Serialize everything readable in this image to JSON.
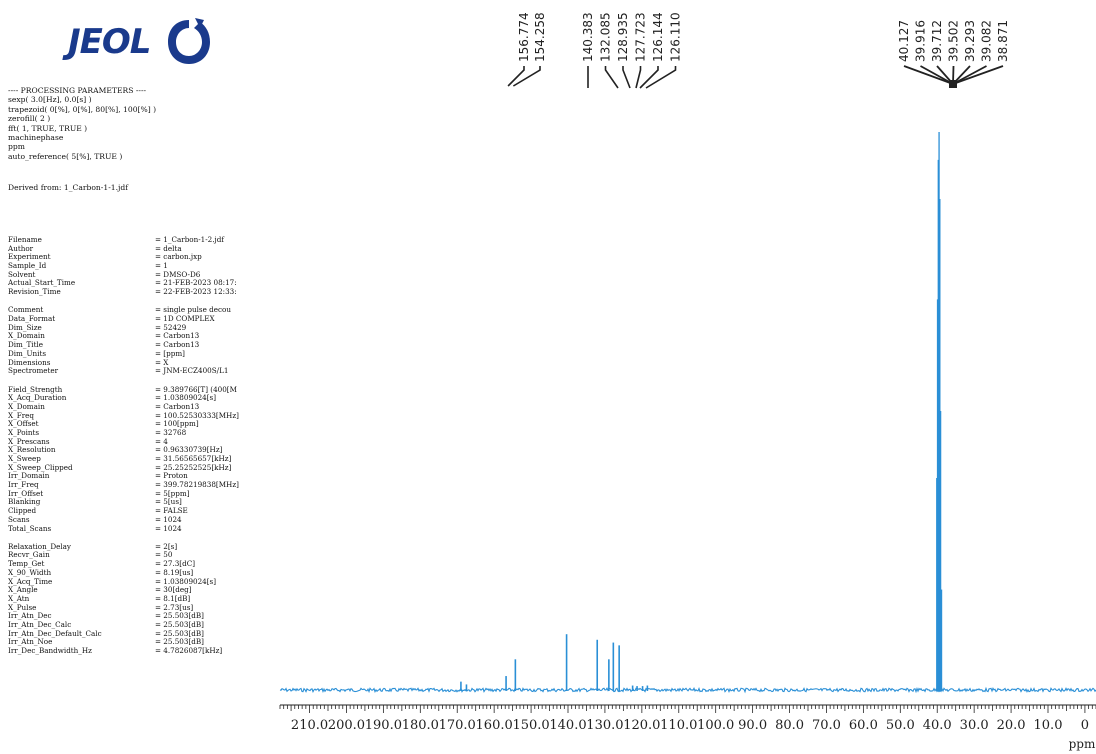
{
  "logo": {
    "text": "JEOL"
  },
  "processing": {
    "lines": [
      "---- PROCESSING PARAMETERS ----",
      "sexp( 3.0[Hz], 0.0[s] )",
      "trapezoid( 0[%], 0[%], 80[%], 100[%] )",
      "zerofill( 2 )",
      "fft( 1, TRUE, TRUE )",
      "machinephase",
      "ppm",
      "auto_reference( 5[%], TRUE )"
    ],
    "derived_from": "Derived from: 1_Carbon-1-1.jdf"
  },
  "params": [
    [
      {
        "k": "Filename",
        "v": "= 1_Carbon-1-2.jdf"
      },
      {
        "k": "Author",
        "v": "= delta"
      },
      {
        "k": "Experiment",
        "v": "= carbon.jxp"
      },
      {
        "k": "Sample_Id",
        "v": "= 1"
      },
      {
        "k": "Solvent",
        "v": "= DMSO-D6"
      },
      {
        "k": "Actual_Start_Time",
        "v": "= 21-FEB-2023 08:17:"
      },
      {
        "k": "Revision_Time",
        "v": "= 22-FEB-2023 12:33:"
      }
    ],
    [
      {
        "k": "Comment",
        "v": "= single pulse decou"
      },
      {
        "k": "Data_Format",
        "v": "= 1D COMPLEX"
      },
      {
        "k": "Dim_Size",
        "v": "= 52429"
      },
      {
        "k": "X_Domain",
        "v": "= Carbon13"
      },
      {
        "k": "Dim_Title",
        "v": "= Carbon13"
      },
      {
        "k": "Dim_Units",
        "v": "= [ppm]"
      },
      {
        "k": "Dimensions",
        "v": "= X"
      },
      {
        "k": "Spectrometer",
        "v": "= JNM-ECZ400S/L1"
      }
    ],
    [
      {
        "k": "Field_Strength",
        "v": "= 9.389766[T] (400[M"
      },
      {
        "k": "X_Acq_Duration",
        "v": "= 1.03809024[s]"
      },
      {
        "k": "X_Domain",
        "v": "= Carbon13"
      },
      {
        "k": "X_Freq",
        "v": "= 100.52530333[MHz]"
      },
      {
        "k": "X_Offset",
        "v": "= 100[ppm]"
      },
      {
        "k": "X_Points",
        "v": "= 32768"
      },
      {
        "k": "X_Prescans",
        "v": "= 4"
      },
      {
        "k": "X_Resolution",
        "v": "= 0.96330739[Hz]"
      },
      {
        "k": "X_Sweep",
        "v": "= 31.56565657[kHz]"
      },
      {
        "k": "X_Sweep_Clipped",
        "v": "= 25.25252525[kHz]"
      },
      {
        "k": "Irr_Domain",
        "v": "= Proton"
      },
      {
        "k": "Irr_Freq",
        "v": "= 399.78219838[MHz]"
      },
      {
        "k": "Irr_Offset",
        "v": "= 5[ppm]"
      },
      {
        "k": "Blanking",
        "v": "= 5[us]"
      },
      {
        "k": "Clipped",
        "v": "= FALSE"
      },
      {
        "k": "Scans",
        "v": "= 1024"
      },
      {
        "k": "Total_Scans",
        "v": "= 1024"
      }
    ],
    [
      {
        "k": "Relaxation_Delay",
        "v": "= 2[s]"
      },
      {
        "k": "Recvr_Gain",
        "v": "= 50"
      },
      {
        "k": "Temp_Get",
        "v": "= 27.3[dC]"
      },
      {
        "k": "X_90_Width",
        "v": "= 8.19[us]"
      },
      {
        "k": "X_Acq_Time",
        "v": "= 1.03809024[s]"
      },
      {
        "k": "X_Angle",
        "v": "= 30[deg]"
      },
      {
        "k": "X_Atn",
        "v": "= 8.1[dB]"
      },
      {
        "k": "X_Pulse",
        "v": "= 2.73[us]"
      },
      {
        "k": "Irr_Atn_Dec",
        "v": "= 25.503[dB]"
      },
      {
        "k": "Irr_Atn_Dec_Calc",
        "v": "= 25.503[dB]"
      },
      {
        "k": "Irr_Atn_Dec_Default_Calc",
        "v": "= 25.503[dB]"
      },
      {
        "k": "Irr_Atn_Noe",
        "v": "= 25.503[dB]"
      },
      {
        "k": "Irr_Dec_Bandwidth_Hz",
        "v": "= 4.7826087[kHz]"
      }
    ]
  ],
  "chart_data": {
    "type": "line",
    "xlabel": "ppm",
    "x_reversed": true,
    "xlim": [
      218,
      -3
    ],
    "ylim": [
      0,
      100
    ],
    "x_ticks": [
      210.0,
      200.0,
      190.0,
      180.0,
      170.0,
      160.0,
      150.0,
      140.0,
      130.0,
      120.0,
      110.0,
      100.0,
      90.0,
      80.0,
      70.0,
      60.0,
      50.0,
      40.0,
      30.0,
      20.0,
      10.0,
      0
    ],
    "x_tick_labels": [
      "210.0",
      "200.0",
      "190.0",
      "180.0",
      "170.0",
      "160.0",
      "150.0",
      "140.0",
      "130.0",
      "120.0",
      "110.0",
      "100.0",
      "90.0",
      "80.0",
      "70.0",
      "60.0",
      "50.0",
      "40.0",
      "30.0",
      "20.0",
      "10.0",
      "0"
    ],
    "peaks": [
      {
        "ppm": 169.0,
        "height": 1.5
      },
      {
        "ppm": 167.5,
        "height": 1.0
      },
      {
        "ppm": 156.774,
        "height": 2.5
      },
      {
        "ppm": 154.258,
        "height": 5.5
      },
      {
        "ppm": 140.383,
        "height": 10.0
      },
      {
        "ppm": 132.085,
        "height": 9.0
      },
      {
        "ppm": 128.935,
        "height": 5.5
      },
      {
        "ppm": 127.723,
        "height": 8.5
      },
      {
        "ppm": 126.144,
        "height": 8.0
      },
      {
        "ppm": 122.5,
        "height": 0.8
      },
      {
        "ppm": 121.3,
        "height": 0.7
      },
      {
        "ppm": 119.8,
        "height": 0.7
      },
      {
        "ppm": 118.5,
        "height": 0.8
      },
      {
        "ppm": 40.127,
        "height": 38.0
      },
      {
        "ppm": 39.916,
        "height": 70.0
      },
      {
        "ppm": 39.712,
        "height": 95.0
      },
      {
        "ppm": 39.502,
        "height": 100.0
      },
      {
        "ppm": 39.293,
        "height": 88.0
      },
      {
        "ppm": 39.082,
        "height": 50.0
      },
      {
        "ppm": 38.871,
        "height": 18.0
      }
    ],
    "peak_labels_left": [
      "156.774",
      "154.258"
    ],
    "peak_labels_mid": [
      "140.383",
      "132.085",
      "128.935",
      "127.723",
      "126.144",
      "126.110"
    ],
    "peak_labels_right": [
      "40.127",
      "39.916",
      "39.712",
      "39.502",
      "39.293",
      "39.082",
      "38.871"
    ],
    "colors": {
      "trace": "#2a8fd6",
      "axis": "#222222",
      "labels": "#222222"
    }
  }
}
